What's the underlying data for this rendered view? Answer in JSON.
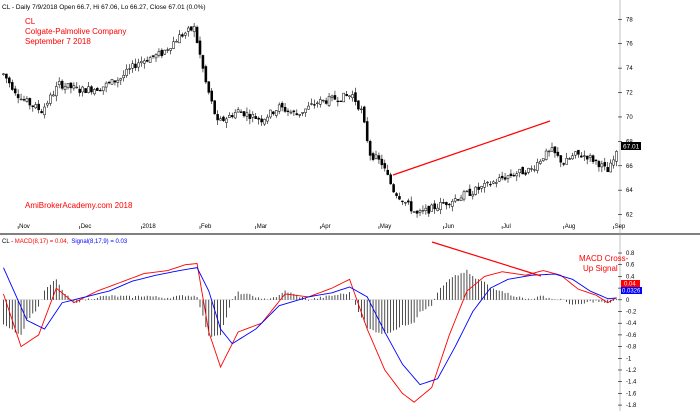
{
  "header": {
    "title": "CL - Daily 7/9/2018 Open 66.7, Hi 67.06, Lo 66.27, Close 67.01 (0.0%)"
  },
  "annotations": {
    "ticker": "CL",
    "company": "Colgate-Palmolive Company",
    "date": "September 7 2018",
    "watermark": "AmiBrokerAcademy.com  2018",
    "macd_signal_line1": "MACD Cross-",
    "macd_signal_line2": "Up Signal"
  },
  "macd_header": {
    "prefix": "CL - ",
    "macd": "MACD(8,17) = 0.04,",
    "signal": "Signal(8,17,9) = 0.03"
  },
  "colors": {
    "macd": "#ff0000",
    "signal": "#0000ff",
    "annotation": "#ff0000",
    "price_badge": "#000000",
    "macd_badge": "#ff0000",
    "signal_badge": "#0000ff"
  },
  "badges": {
    "price": "67.01",
    "macd": "0.04",
    "signal": "0.0326"
  },
  "chart_data": {
    "type": "candlestick",
    "months": [
      "Nov",
      "Dec",
      "2018",
      "Feb",
      "Mar",
      "Apr",
      "May",
      "Jun",
      "Jul",
      "Aug",
      "Sep"
    ],
    "price_axis": {
      "ticks": [
        "62",
        "64",
        "66",
        "68",
        "70",
        "72",
        "74",
        "76",
        "78"
      ],
      "ylim": [
        60.9,
        78.6
      ]
    },
    "macd_axis": {
      "ticks": [
        "0.8",
        "0.6",
        "0.4",
        "0.2",
        "0",
        "-0.2",
        "-0.4",
        "-0.6",
        "-0.8",
        "-1",
        "-1.2",
        "-1.4",
        "-1.6",
        "-1.8"
      ],
      "ylim": [
        -1.85,
        0.92
      ]
    },
    "price_keypoints": [
      {
        "x": 0,
        "y": 73.5
      },
      {
        "x": 6,
        "y": 71.5
      },
      {
        "x": 13,
        "y": 70.5
      },
      {
        "x": 19,
        "y": 72.7
      },
      {
        "x": 26,
        "y": 72.2
      },
      {
        "x": 33,
        "y": 72.4
      },
      {
        "x": 40,
        "y": 73.2
      },
      {
        "x": 46,
        "y": 74.5
      },
      {
        "x": 54,
        "y": 75.2
      },
      {
        "x": 60,
        "y": 76.6
      },
      {
        "x": 65,
        "y": 77.3
      },
      {
        "x": 69,
        "y": 72.8
      },
      {
        "x": 73,
        "y": 69.5
      },
      {
        "x": 80,
        "y": 70.5
      },
      {
        "x": 88,
        "y": 69.8
      },
      {
        "x": 94,
        "y": 70.8
      },
      {
        "x": 100,
        "y": 70.2
      },
      {
        "x": 107,
        "y": 71.2
      },
      {
        "x": 115,
        "y": 71.6
      },
      {
        "x": 119,
        "y": 71.8
      },
      {
        "x": 122,
        "y": 70.5
      },
      {
        "x": 125,
        "y": 67.0
      },
      {
        "x": 129,
        "y": 66.2
      },
      {
        "x": 133,
        "y": 64.0
      },
      {
        "x": 137,
        "y": 63.0
      },
      {
        "x": 141,
        "y": 62.0
      },
      {
        "x": 145,
        "y": 62.4
      },
      {
        "x": 150,
        "y": 62.9
      },
      {
        "x": 155,
        "y": 63.4
      },
      {
        "x": 160,
        "y": 63.9
      },
      {
        "x": 165,
        "y": 64.4
      },
      {
        "x": 170,
        "y": 65.0
      },
      {
        "x": 175,
        "y": 65.4
      },
      {
        "x": 180,
        "y": 65.7
      },
      {
        "x": 184,
        "y": 66.8
      },
      {
        "x": 187,
        "y": 67.2
      },
      {
        "x": 191,
        "y": 66.2
      },
      {
        "x": 195,
        "y": 66.9
      },
      {
        "x": 199,
        "y": 66.8
      },
      {
        "x": 203,
        "y": 66.2
      },
      {
        "x": 206,
        "y": 65.5
      },
      {
        "x": 209,
        "y": 66.9
      }
    ],
    "macd_keypoints": [
      {
        "x": 0,
        "y": 0.1
      },
      {
        "x": 6,
        "y": -0.8
      },
      {
        "x": 12,
        "y": -0.6
      },
      {
        "x": 18,
        "y": 0.2
      },
      {
        "x": 24,
        "y": -0.05
      },
      {
        "x": 32,
        "y": 0.15
      },
      {
        "x": 40,
        "y": 0.3
      },
      {
        "x": 48,
        "y": 0.45
      },
      {
        "x": 56,
        "y": 0.5
      },
      {
        "x": 62,
        "y": 0.6
      },
      {
        "x": 66,
        "y": 0.62
      },
      {
        "x": 70,
        "y": -0.55
      },
      {
        "x": 74,
        "y": -1.15
      },
      {
        "x": 80,
        "y": -0.55
      },
      {
        "x": 88,
        "y": -0.4
      },
      {
        "x": 96,
        "y": 0.1
      },
      {
        "x": 104,
        "y": 0.05
      },
      {
        "x": 112,
        "y": 0.2
      },
      {
        "x": 118,
        "y": 0.35
      },
      {
        "x": 124,
        "y": -0.5
      },
      {
        "x": 130,
        "y": -1.2
      },
      {
        "x": 136,
        "y": -1.6
      },
      {
        "x": 140,
        "y": -1.75
      },
      {
        "x": 146,
        "y": -1.5
      },
      {
        "x": 152,
        "y": -0.6
      },
      {
        "x": 158,
        "y": 0.15
      },
      {
        "x": 164,
        "y": 0.4
      },
      {
        "x": 170,
        "y": 0.48
      },
      {
        "x": 178,
        "y": 0.42
      },
      {
        "x": 184,
        "y": 0.5
      },
      {
        "x": 190,
        "y": 0.42
      },
      {
        "x": 196,
        "y": 0.18
      },
      {
        "x": 202,
        "y": 0.08
      },
      {
        "x": 206,
        "y": -0.05
      },
      {
        "x": 209,
        "y": 0.04
      }
    ],
    "signal_keypoints": [
      {
        "x": 0,
        "y": 0.55
      },
      {
        "x": 8,
        "y": -0.35
      },
      {
        "x": 14,
        "y": -0.5
      },
      {
        "x": 20,
        "y": -0.05
      },
      {
        "x": 28,
        "y": 0.05
      },
      {
        "x": 36,
        "y": 0.15
      },
      {
        "x": 44,
        "y": 0.32
      },
      {
        "x": 52,
        "y": 0.42
      },
      {
        "x": 60,
        "y": 0.5
      },
      {
        "x": 66,
        "y": 0.55
      },
      {
        "x": 70,
        "y": 0.15
      },
      {
        "x": 74,
        "y": -0.5
      },
      {
        "x": 78,
        "y": -0.75
      },
      {
        "x": 86,
        "y": -0.5
      },
      {
        "x": 94,
        "y": -0.1
      },
      {
        "x": 104,
        "y": 0.05
      },
      {
        "x": 112,
        "y": 0.12
      },
      {
        "x": 118,
        "y": 0.22
      },
      {
        "x": 124,
        "y": 0.05
      },
      {
        "x": 130,
        "y": -0.55
      },
      {
        "x": 136,
        "y": -1.1
      },
      {
        "x": 142,
        "y": -1.45
      },
      {
        "x": 148,
        "y": -1.35
      },
      {
        "x": 154,
        "y": -0.8
      },
      {
        "x": 160,
        "y": -0.2
      },
      {
        "x": 166,
        "y": 0.2
      },
      {
        "x": 172,
        "y": 0.35
      },
      {
        "x": 180,
        "y": 0.42
      },
      {
        "x": 188,
        "y": 0.44
      },
      {
        "x": 194,
        "y": 0.35
      },
      {
        "x": 200,
        "y": 0.15
      },
      {
        "x": 206,
        "y": 0.02
      },
      {
        "x": 209,
        "y": 0.03
      }
    ]
  }
}
